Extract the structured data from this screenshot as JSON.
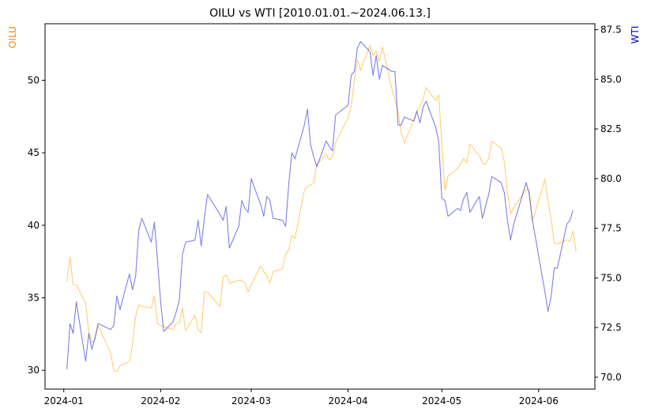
{
  "chart_data": {
    "type": "line",
    "title": "OILU vs WTI [2010.01.01.~2024.06.13.]",
    "x_axis": {
      "type": "date",
      "range": [
        "2023-12-26",
        "2024-06-19"
      ],
      "ticks": [
        "2024-01-01",
        "2024-02-01",
        "2024-03-01",
        "2024-04-01",
        "2024-05-01",
        "2024-06-01"
      ],
      "tick_labels": [
        "2024-01",
        "2024-02",
        "2024-03",
        "2024-04",
        "2024-05",
        "2024-06"
      ]
    },
    "y_left": {
      "label": "OILU",
      "label_color": "#ff8c00",
      "range": [
        28.7,
        53.9
      ],
      "ticks": [
        30,
        35,
        40,
        45,
        50
      ]
    },
    "y_right": {
      "label": "WTI",
      "label_color": "#0000cd",
      "range": [
        69.4,
        87.8
      ],
      "ticks": [
        70.0,
        72.5,
        75.0,
        77.5,
        80.0,
        82.5,
        85.0,
        87.5
      ],
      "tick_labels": [
        "70.0",
        "72.5",
        "75.0",
        "77.5",
        "80.0",
        "82.5",
        "85.0",
        "87.5"
      ]
    },
    "grid": false,
    "legend": "none",
    "series": [
      {
        "axis": "left",
        "color": "#ffa500",
        "opacity": 0.55,
        "points": [
          [
            "2024-01-02",
            36.1
          ],
          [
            "2024-01-03",
            37.8
          ],
          [
            "2024-01-04",
            35.9
          ],
          [
            "2024-01-05",
            35.9
          ],
          [
            "2024-01-08",
            34.6
          ],
          [
            "2024-01-09",
            32.7
          ],
          [
            "2024-01-10",
            31.9
          ],
          [
            "2024-01-11",
            32.1
          ],
          [
            "2024-01-12",
            33.1
          ],
          [
            "2024-01-16",
            31.2
          ],
          [
            "2024-01-17",
            30.0
          ],
          [
            "2024-01-18",
            29.9
          ],
          [
            "2024-01-19",
            30.3
          ],
          [
            "2024-01-22",
            30.6
          ],
          [
            "2024-01-23",
            31.8
          ],
          [
            "2024-01-24",
            33.7
          ],
          [
            "2024-01-25",
            34.5
          ],
          [
            "2024-01-26",
            34.4
          ],
          [
            "2024-01-29",
            34.3
          ],
          [
            "2024-01-30",
            35.1
          ],
          [
            "2024-01-31",
            33.2
          ],
          [
            "2024-02-01",
            33.1
          ],
          [
            "2024-02-02",
            33.0
          ],
          [
            "2024-02-05",
            32.8
          ],
          [
            "2024-02-06",
            33.2
          ],
          [
            "2024-02-07",
            33.3
          ],
          [
            "2024-02-08",
            34.3
          ],
          [
            "2024-02-09",
            32.7
          ],
          [
            "2024-02-12",
            33.8
          ],
          [
            "2024-02-13",
            32.8
          ],
          [
            "2024-02-14",
            32.6
          ],
          [
            "2024-02-15",
            35.4
          ],
          [
            "2024-02-16",
            35.4
          ],
          [
            "2024-02-20",
            34.4
          ],
          [
            "2024-02-21",
            36.4
          ],
          [
            "2024-02-22",
            36.6
          ],
          [
            "2024-02-23",
            36.0
          ],
          [
            "2024-02-26",
            36.2
          ],
          [
            "2024-02-27",
            36.2
          ],
          [
            "2024-02-28",
            36.0
          ],
          [
            "2024-02-29",
            35.4
          ],
          [
            "2024-03-01",
            35.9
          ],
          [
            "2024-03-04",
            37.2
          ],
          [
            "2024-03-05",
            36.8
          ],
          [
            "2024-03-06",
            36.5
          ],
          [
            "2024-03-07",
            36.0
          ],
          [
            "2024-03-08",
            36.8
          ],
          [
            "2024-03-11",
            37.0
          ],
          [
            "2024-03-12",
            38.0
          ],
          [
            "2024-03-13",
            38.3
          ],
          [
            "2024-03-14",
            39.3
          ],
          [
            "2024-03-15",
            39.1
          ],
          [
            "2024-03-18",
            42.4
          ],
          [
            "2024-03-19",
            42.7
          ],
          [
            "2024-03-20",
            42.8
          ],
          [
            "2024-03-21",
            42.9
          ],
          [
            "2024-03-22",
            44.2
          ],
          [
            "2024-03-25",
            44.9
          ],
          [
            "2024-03-26",
            44.5
          ],
          [
            "2024-03-27",
            44.7
          ],
          [
            "2024-03-28",
            45.7
          ],
          [
            "2024-04-01",
            47.4
          ],
          [
            "2024-04-02",
            48.2
          ],
          [
            "2024-04-03",
            50.0
          ],
          [
            "2024-04-04",
            51.4
          ],
          [
            "2024-04-05",
            50.7
          ],
          [
            "2024-04-08",
            52.4
          ],
          [
            "2024-04-09",
            51.7
          ],
          [
            "2024-04-10",
            52.0
          ],
          [
            "2024-04-11",
            51.3
          ],
          [
            "2024-04-12",
            52.3
          ],
          [
            "2024-04-15",
            49.4
          ],
          [
            "2024-04-16",
            48.7
          ],
          [
            "2024-04-17",
            47.8
          ],
          [
            "2024-04-18",
            46.4
          ],
          [
            "2024-04-19",
            45.7
          ],
          [
            "2024-04-22",
            47.2
          ],
          [
            "2024-04-23",
            47.8
          ],
          [
            "2024-04-24",
            48.2
          ],
          [
            "2024-04-25",
            48.7
          ],
          [
            "2024-04-26",
            49.5
          ],
          [
            "2024-04-29",
            48.6
          ],
          [
            "2024-04-30",
            49.0
          ],
          [
            "2024-05-01",
            45.6
          ],
          [
            "2024-05-02",
            42.4
          ],
          [
            "2024-05-03",
            43.4
          ],
          [
            "2024-05-06",
            43.9
          ],
          [
            "2024-05-07",
            44.2
          ],
          [
            "2024-05-08",
            44.6
          ],
          [
            "2024-05-09",
            44.3
          ],
          [
            "2024-05-10",
            45.6
          ],
          [
            "2024-05-13",
            44.8
          ],
          [
            "2024-05-14",
            44.3
          ],
          [
            "2024-05-15",
            44.2
          ],
          [
            "2024-05-16",
            44.6
          ],
          [
            "2024-05-17",
            45.8
          ],
          [
            "2024-05-20",
            45.3
          ],
          [
            "2024-05-21",
            44.4
          ],
          [
            "2024-05-22",
            42.3
          ],
          [
            "2024-05-23",
            40.8
          ],
          [
            "2024-05-24",
            41.2
          ],
          [
            "2024-05-28",
            42.5
          ],
          [
            "2024-05-29",
            42.4
          ],
          [
            "2024-05-30",
            40.3
          ],
          [
            "2024-05-31",
            41.0
          ],
          [
            "2024-06-03",
            43.2
          ],
          [
            "2024-06-04",
            41.6
          ],
          [
            "2024-06-05",
            40.4
          ],
          [
            "2024-06-06",
            38.8
          ],
          [
            "2024-06-07",
            38.7
          ],
          [
            "2024-06-10",
            39.0
          ],
          [
            "2024-06-11",
            38.9
          ],
          [
            "2024-06-12",
            39.6
          ],
          [
            "2024-06-13",
            38.2
          ]
        ]
      },
      {
        "axis": "right",
        "color": "#0000cd",
        "opacity": 0.5,
        "points": [
          [
            "2024-01-02",
            70.4
          ],
          [
            "2024-01-03",
            72.7
          ],
          [
            "2024-01-04",
            72.2
          ],
          [
            "2024-01-05",
            73.8
          ],
          [
            "2024-01-08",
            70.8
          ],
          [
            "2024-01-09",
            72.2
          ],
          [
            "2024-01-10",
            71.4
          ],
          [
            "2024-01-11",
            72.0
          ],
          [
            "2024-01-12",
            72.7
          ],
          [
            "2024-01-16",
            72.4
          ],
          [
            "2024-01-17",
            72.6
          ],
          [
            "2024-01-18",
            74.1
          ],
          [
            "2024-01-19",
            73.4
          ],
          [
            "2024-01-22",
            75.2
          ],
          [
            "2024-01-23",
            74.4
          ],
          [
            "2024-01-24",
            75.1
          ],
          [
            "2024-01-25",
            77.4
          ],
          [
            "2024-01-26",
            78.0
          ],
          [
            "2024-01-29",
            76.8
          ],
          [
            "2024-01-30",
            77.8
          ],
          [
            "2024-01-31",
            75.9
          ],
          [
            "2024-02-01",
            73.8
          ],
          [
            "2024-02-02",
            72.3
          ],
          [
            "2024-02-05",
            72.8
          ],
          [
            "2024-02-06",
            73.3
          ],
          [
            "2024-02-07",
            73.9
          ],
          [
            "2024-02-08",
            76.2
          ],
          [
            "2024-02-09",
            76.8
          ],
          [
            "2024-02-12",
            76.9
          ],
          [
            "2024-02-13",
            77.9
          ],
          [
            "2024-02-14",
            76.6
          ],
          [
            "2024-02-15",
            78.0
          ],
          [
            "2024-02-16",
            79.2
          ],
          [
            "2024-02-20",
            78.2
          ],
          [
            "2024-02-21",
            77.9
          ],
          [
            "2024-02-22",
            78.6
          ],
          [
            "2024-02-23",
            76.5
          ],
          [
            "2024-02-26",
            77.6
          ],
          [
            "2024-02-27",
            78.9
          ],
          [
            "2024-02-28",
            78.5
          ],
          [
            "2024-02-29",
            78.3
          ],
          [
            "2024-03-01",
            80.0
          ],
          [
            "2024-03-04",
            78.7
          ],
          [
            "2024-03-05",
            78.1
          ],
          [
            "2024-03-06",
            79.1
          ],
          [
            "2024-03-07",
            78.9
          ],
          [
            "2024-03-08",
            78.0
          ],
          [
            "2024-03-11",
            77.9
          ],
          [
            "2024-03-12",
            77.6
          ],
          [
            "2024-03-13",
            79.7
          ],
          [
            "2024-03-14",
            81.3
          ],
          [
            "2024-03-15",
            81.0
          ],
          [
            "2024-03-18",
            82.7
          ],
          [
            "2024-03-19",
            83.5
          ],
          [
            "2024-03-20",
            81.7
          ],
          [
            "2024-03-21",
            81.1
          ],
          [
            "2024-03-22",
            80.6
          ],
          [
            "2024-03-25",
            81.9
          ],
          [
            "2024-03-26",
            81.6
          ],
          [
            "2024-03-27",
            81.4
          ],
          [
            "2024-03-28",
            83.2
          ],
          [
            "2024-04-01",
            83.7
          ],
          [
            "2024-04-02",
            85.2
          ],
          [
            "2024-04-03",
            85.4
          ],
          [
            "2024-04-04",
            86.6
          ],
          [
            "2024-04-05",
            86.9
          ],
          [
            "2024-04-08",
            86.4
          ],
          [
            "2024-04-09",
            85.2
          ],
          [
            "2024-04-10",
            86.2
          ],
          [
            "2024-04-11",
            85.0
          ],
          [
            "2024-04-12",
            85.7
          ],
          [
            "2024-04-15",
            85.4
          ],
          [
            "2024-04-16",
            85.4
          ],
          [
            "2024-04-17",
            82.7
          ],
          [
            "2024-04-18",
            82.7
          ],
          [
            "2024-04-19",
            83.1
          ],
          [
            "2024-04-22",
            82.9
          ],
          [
            "2024-04-23",
            83.4
          ],
          [
            "2024-04-24",
            82.8
          ],
          [
            "2024-04-25",
            83.6
          ],
          [
            "2024-04-26",
            83.9
          ],
          [
            "2024-04-29",
            82.6
          ],
          [
            "2024-04-30",
            81.9
          ],
          [
            "2024-05-01",
            79.0
          ],
          [
            "2024-05-02",
            78.9
          ],
          [
            "2024-05-03",
            78.1
          ],
          [
            "2024-05-06",
            78.5
          ],
          [
            "2024-05-07",
            78.4
          ],
          [
            "2024-05-08",
            79.0
          ],
          [
            "2024-05-09",
            79.3
          ],
          [
            "2024-05-10",
            78.3
          ],
          [
            "2024-05-13",
            79.1
          ],
          [
            "2024-05-14",
            78.0
          ],
          [
            "2024-05-15",
            78.6
          ],
          [
            "2024-05-16",
            79.2
          ],
          [
            "2024-05-17",
            80.1
          ],
          [
            "2024-05-20",
            79.8
          ],
          [
            "2024-05-21",
            79.3
          ],
          [
            "2024-05-22",
            77.9
          ],
          [
            "2024-05-23",
            76.9
          ],
          [
            "2024-05-24",
            77.7
          ],
          [
            "2024-05-28",
            79.8
          ],
          [
            "2024-05-29",
            79.2
          ],
          [
            "2024-05-30",
            77.9
          ],
          [
            "2024-05-31",
            77.0
          ],
          [
            "2024-06-03",
            74.3
          ],
          [
            "2024-06-04",
            73.3
          ],
          [
            "2024-06-05",
            74.1
          ],
          [
            "2024-06-06",
            75.5
          ],
          [
            "2024-06-07",
            75.5
          ],
          [
            "2024-06-10",
            77.7
          ],
          [
            "2024-06-11",
            77.9
          ],
          [
            "2024-06-12",
            78.4
          ]
        ]
      }
    ]
  }
}
